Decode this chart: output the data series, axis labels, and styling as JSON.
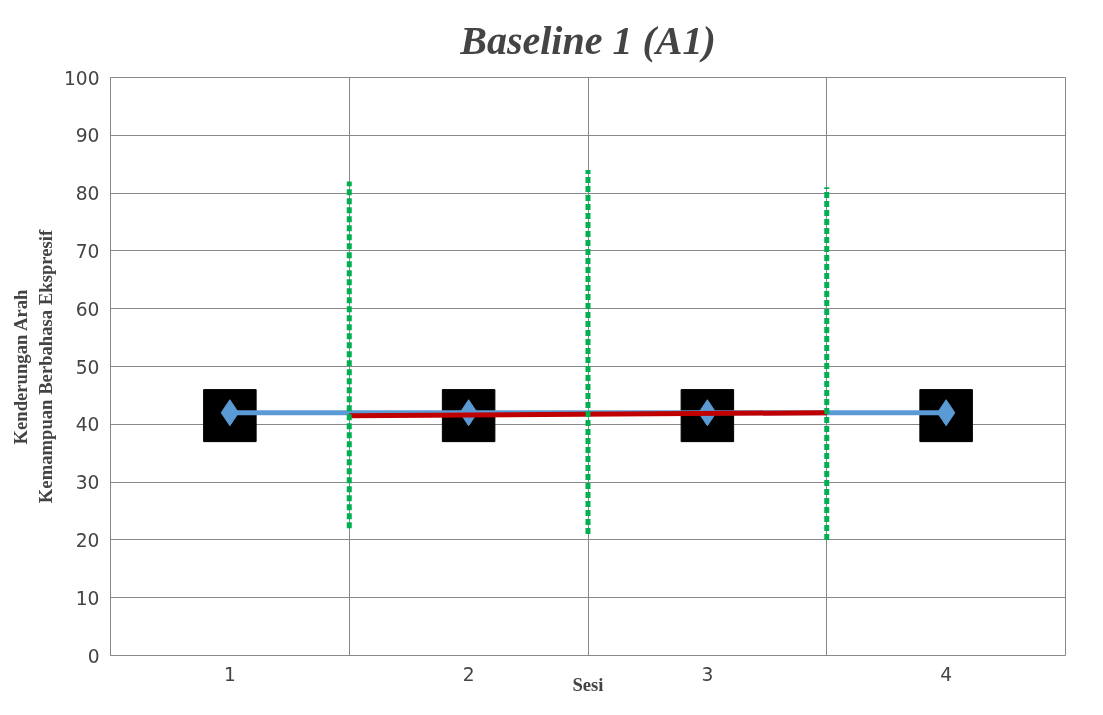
{
  "chart_data": {
    "type": "line",
    "title": "Baseline 1 (A1)",
    "xlabel": "Sesi",
    "ylabel": "Kenderungan Arah\nKemampuan Berbahasa Ekspresif",
    "x": [
      1,
      2,
      3,
      4
    ],
    "xlim": [
      0.5,
      4.5
    ],
    "xticks": [
      1,
      2,
      3,
      4
    ],
    "ylim": [
      0,
      100
    ],
    "yticks": [
      0,
      10,
      20,
      30,
      40,
      50,
      60,
      70,
      80,
      90,
      100
    ],
    "grid": true,
    "series": [
      {
        "type": "bar",
        "color": "#000000",
        "base": [
          37,
          37,
          37,
          37
        ],
        "values": [
          9,
          9,
          9,
          9
        ]
      },
      {
        "marker": "diamond",
        "color": "#5b9bd5",
        "values": [
          42,
          42,
          42,
          42
        ]
      },
      {
        "type": "line",
        "marker": "none",
        "color": "#c00000",
        "x": [
          1.5,
          3.5
        ],
        "values": [
          41.5,
          42
        ]
      },
      {
        "type": "line",
        "marker": "none",
        "line_style": "dashed",
        "color": "#00b050",
        "x": [
          1.5,
          1.5
        ],
        "values": [
          22,
          82
        ]
      },
      {
        "type": "line",
        "marker": "none",
        "line_style": "dashed",
        "color": "#00b050",
        "x": [
          2.5,
          2.5
        ],
        "values": [
          21,
          84
        ]
      },
      {
        "type": "line",
        "marker": "none",
        "line_style": "dashed",
        "color": "#00b050",
        "x": [
          3.5,
          3.5
        ],
        "values": [
          20,
          81
        ]
      }
    ]
  }
}
